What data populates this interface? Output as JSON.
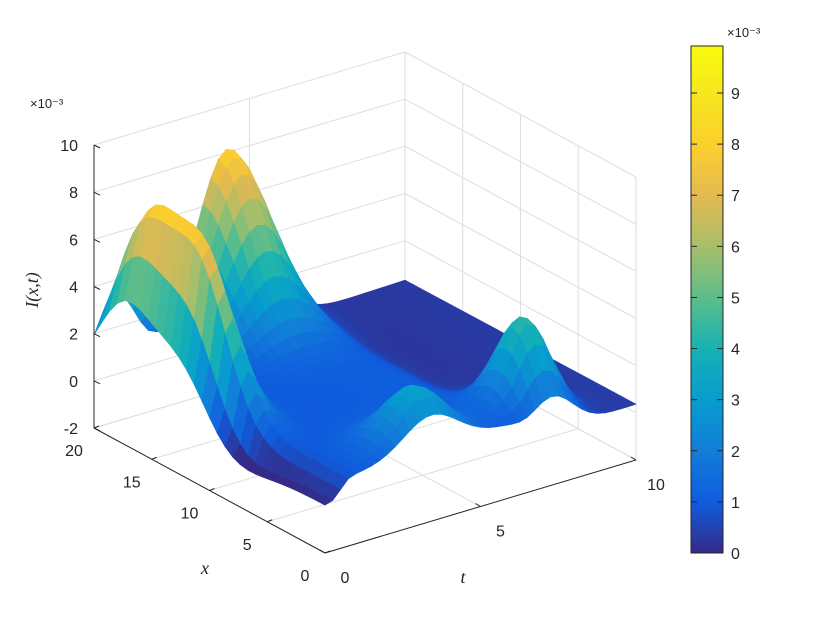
{
  "chart_data": [
    {
      "type": "surface",
      "title": "",
      "xlabel": "t",
      "ylabel": "x",
      "zlabel": "I(x,t)",
      "xlim": [
        0,
        10
      ],
      "ylim": [
        0,
        20
      ],
      "zlim": [
        -2,
        10
      ],
      "z_scale_label": "×10⁻³",
      "x_ticks": [
        "0",
        "5",
        "10"
      ],
      "y_ticks": [
        "0",
        "5",
        "10",
        "15",
        "20"
      ],
      "z_ticks": [
        "-2",
        "0",
        "2",
        "4",
        "6",
        "8",
        "10"
      ],
      "grid": true,
      "colormap": "parula",
      "clim": [
        0,
        10
      ],
      "peaks": [
        {
          "t": 0.6,
          "x": 12.5,
          "I": 6.8
        },
        {
          "t": 0.7,
          "x": 17.5,
          "I": 6.1
        },
        {
          "t": 4.3,
          "x": 20.0,
          "I": 8.0
        },
        {
          "t": 7.3,
          "x": 2.5,
          "I": 4.2
        },
        {
          "t": 3.4,
          "x": 1.5,
          "I": 2.3
        }
      ],
      "colorbar": {
        "location": "right",
        "scale_label": "×10⁻³",
        "ticks": [
          "0",
          "1",
          "2",
          "3",
          "4",
          "5",
          "6",
          "7",
          "8",
          "9"
        ]
      }
    }
  ]
}
